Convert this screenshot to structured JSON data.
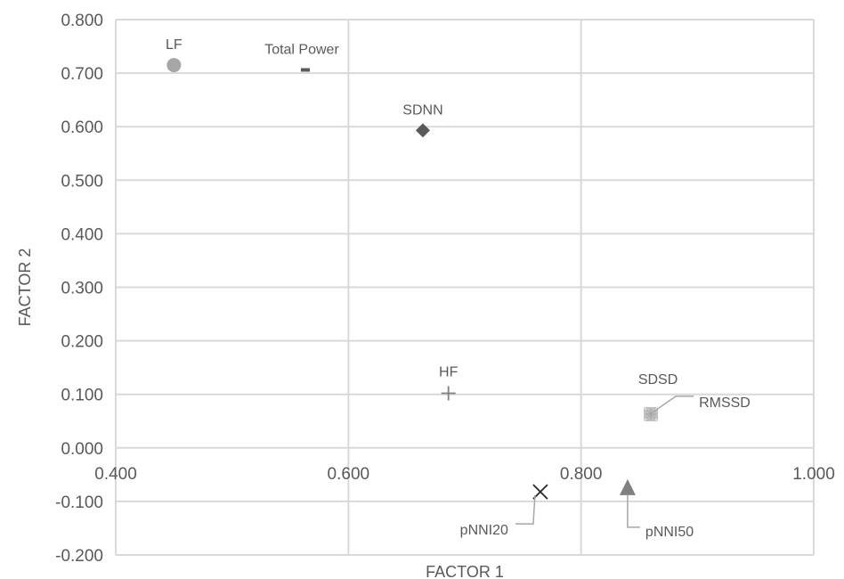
{
  "chart_data": {
    "type": "scatter",
    "title": "",
    "xlabel": "FACTOR 1",
    "ylabel": "FACTOR 2",
    "xlim": [
      0.4,
      1.0
    ],
    "ylim": [
      -0.2,
      0.8
    ],
    "x_ticks": [
      "0.400",
      "0.600",
      "0.800",
      "1.000"
    ],
    "y_ticks": [
      "-0.200",
      "-0.100",
      "0.000",
      "0.100",
      "0.200",
      "0.300",
      "0.400",
      "0.500",
      "0.600",
      "0.700",
      "0.800"
    ],
    "grid": true,
    "legend": "none",
    "points": [
      {
        "label": "LF",
        "x": 0.45,
        "y": 0.715,
        "marker": "circle",
        "color": "#a6a6a6"
      },
      {
        "label": "Total Power",
        "x": 0.563,
        "y": 0.706,
        "marker": "dash",
        "color": "#595959"
      },
      {
        "label": "SDNN",
        "x": 0.664,
        "y": 0.593,
        "marker": "diamond",
        "color": "#595959"
      },
      {
        "label": "HF",
        "x": 0.686,
        "y": 0.102,
        "marker": "plus",
        "color": "#808080"
      },
      {
        "label": "SDSD",
        "x": 0.86,
        "y": 0.063,
        "marker": "square-x",
        "color": "#bfbfbf"
      },
      {
        "label": "RMSSD",
        "x": 0.86,
        "y": 0.063,
        "marker": "star",
        "color": "#a6a6a6"
      },
      {
        "label": "pNNI20",
        "x": 0.765,
        "y": -0.082,
        "marker": "x",
        "color": "#262626"
      },
      {
        "label": "pNNI50",
        "x": 0.84,
        "y": -0.075,
        "marker": "triangle",
        "color": "#808080"
      }
    ]
  }
}
